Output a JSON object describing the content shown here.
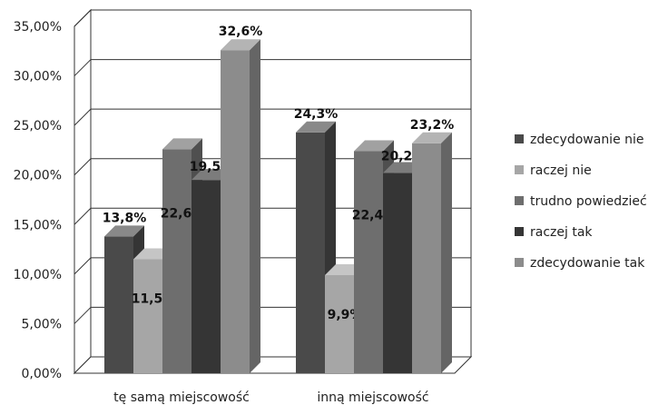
{
  "chart_data": {
    "type": "bar",
    "three_d": true,
    "categories": [
      "tę samą miejscowość",
      "inną miejscowość"
    ],
    "series": [
      {
        "name": "zdecydowanie nie",
        "values": [
          13.8,
          24.3
        ],
        "labels": [
          "13,8%",
          "24,3%"
        ],
        "color": "#4a4a4a"
      },
      {
        "name": "raczej nie",
        "values": [
          11.5,
          9.9
        ],
        "labels": [
          "11,5%",
          "9,9%"
        ],
        "color": "#a6a6a6"
      },
      {
        "name": "trudno powiedzieć",
        "values": [
          22.6,
          22.4
        ],
        "labels": [
          "22,6%",
          "22,4%"
        ],
        "color": "#6e6e6e"
      },
      {
        "name": "raczej tak",
        "values": [
          19.5,
          20.2
        ],
        "labels": [
          "19,5%",
          "20,2%"
        ],
        "color": "#353535"
      },
      {
        "name": "zdecydowanie tak",
        "values": [
          32.6,
          23.2
        ],
        "labels": [
          "32,6%",
          "23,2%"
        ],
        "color": "#8c8c8c"
      }
    ],
    "yticks": [
      "0,00%",
      "5,00%",
      "10,00%",
      "15,00%",
      "20,00%",
      "25,00%",
      "30,00%",
      "35,00%"
    ],
    "ylim": [
      0,
      35
    ],
    "grid": true,
    "legend": "right"
  }
}
